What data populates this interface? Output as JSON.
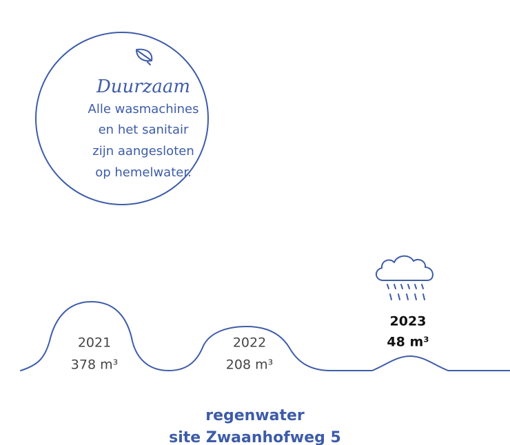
{
  "info": {
    "heading": "Duurzaam",
    "lines": [
      "Alle wasmachines",
      "en het sanitair",
      "zijn aangesloten",
      "op hemelwater."
    ]
  },
  "years": [
    {
      "year": "2021",
      "amount": "378 m³"
    },
    {
      "year": "2022",
      "amount": "208 m³"
    },
    {
      "year": "2023",
      "amount": "48 m³"
    }
  ],
  "footer": [
    "regenwater",
    "site Zwaanhofweg 5"
  ]
}
